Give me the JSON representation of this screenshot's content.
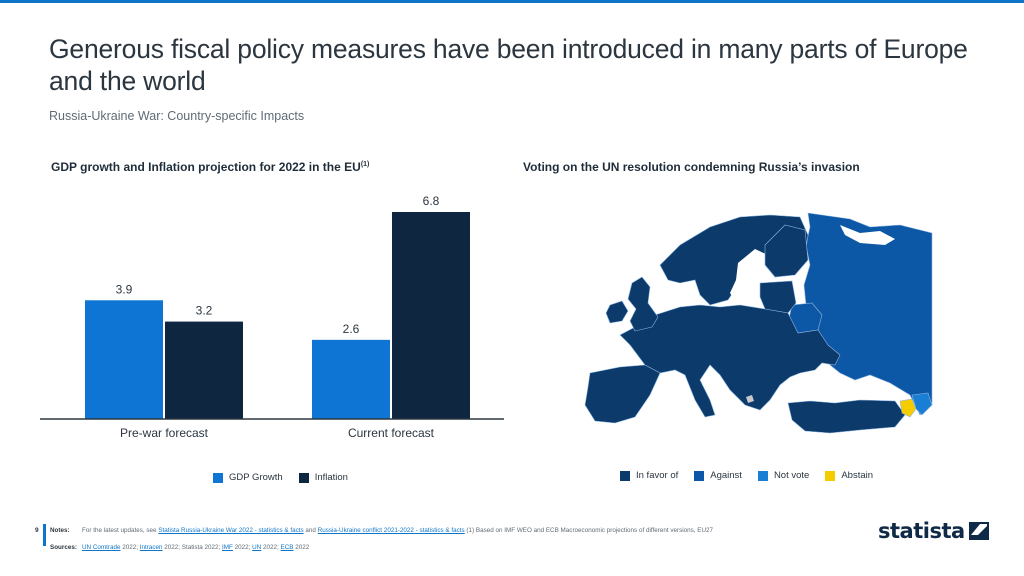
{
  "header": {
    "title": "Generous fiscal policy measures have been introduced in many parts of Europe and the world",
    "subtitle": "Russia-Ukraine War: Country-specific Impacts"
  },
  "colors": {
    "accent": "#0f75c8",
    "gdp_growth": "#0f75d4",
    "inflation": "#0e2640",
    "in_favor": "#0b3a6b",
    "against": "#0c57a6",
    "not_vote": "#1a7fd4",
    "abstain": "#f5cc00",
    "no_data": "#c8c8c8"
  },
  "chart_data": [
    {
      "type": "bar",
      "title": "GDP growth and Inflation projection for 2022 in the EU",
      "title_superscript": "(1)",
      "categories": [
        "Pre-war forecast",
        "Current forecast"
      ],
      "series": [
        {
          "name": "GDP Growth",
          "values": [
            3.9,
            2.6
          ]
        },
        {
          "name": "Inflation",
          "values": [
            3.2,
            6.8
          ]
        }
      ],
      "xlabel": "",
      "ylabel": "",
      "ylim": [
        0,
        6.8
      ],
      "grid": false,
      "data_labels": true,
      "legend": "bottom-center"
    },
    {
      "type": "map",
      "title": "Voting on the UN resolution condemning Russia’s invasion",
      "legend": "bottom-center",
      "categories": [
        "In favor of",
        "Against",
        "Not vote",
        "Abstain"
      ],
      "regions": [
        {
          "name": "Most of Europe (EU, UK, Norway, Ukraine, Turkey, Balkans, Georgia, Moldova)",
          "vote": "In favor of"
        },
        {
          "name": "Russia",
          "vote": "Against"
        },
        {
          "name": "Belarus",
          "vote": "Against"
        },
        {
          "name": "Azerbaijan",
          "vote": "Not vote"
        },
        {
          "name": "Armenia",
          "vote": "Abstain"
        }
      ]
    }
  ],
  "footer": {
    "page_number": "9",
    "notes_label": "Notes:",
    "notes_prefix": "For the latest updates, see",
    "notes_link1": "Statista Russia-Ukraine War 2022 - statistics & facts",
    "notes_and": "and",
    "notes_link2": "Russia-Ukraine conflict 2021-2022 - statistics & facts",
    "notes_suffix": "(1) Based on IMF WEO and ECB Macroeconomic projections of different versions, EU27",
    "sources_label": "Sources:",
    "sources": [
      {
        "link": "UN Comtrade",
        "year": "2022;"
      },
      {
        "link": "Intracen",
        "year": "2022; Statista 2022;"
      },
      {
        "link": "IMF",
        "year": "2022;"
      },
      {
        "link": "UN",
        "year": "2022;"
      },
      {
        "link": "ECB",
        "year": "2022"
      }
    ],
    "logo_text": "statista"
  }
}
